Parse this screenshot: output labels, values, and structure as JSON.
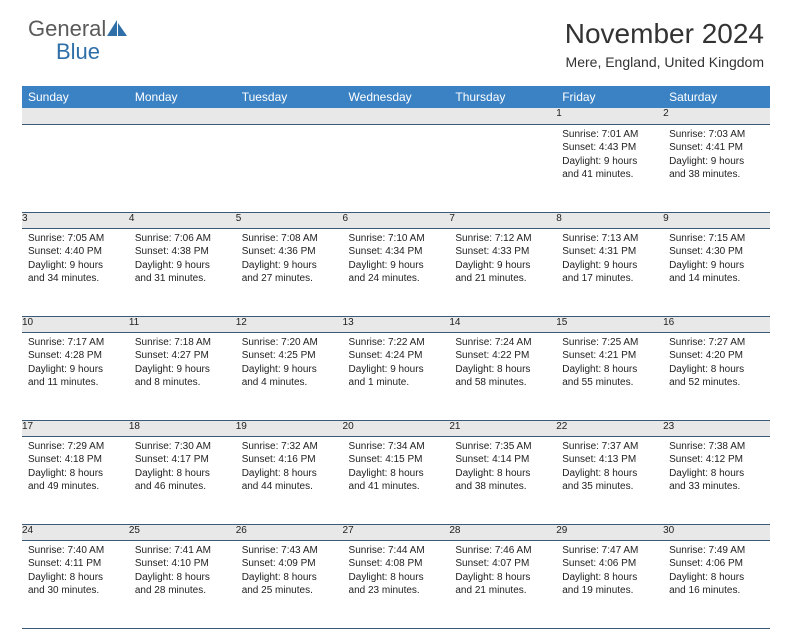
{
  "brand": {
    "word1": "General",
    "word2": "Blue",
    "logo_color": "#2f6fa8",
    "text_color": "#5a5a5a"
  },
  "title": "November 2024",
  "location": "Mere, England, United Kingdom",
  "colors": {
    "header_bg": "#3b82c4",
    "header_fg": "#ffffff",
    "daynum_bg": "#e8e8e8",
    "row_border": "#3b5a7a",
    "text": "#222222"
  },
  "days_of_week": [
    "Sunday",
    "Monday",
    "Tuesday",
    "Wednesday",
    "Thursday",
    "Friday",
    "Saturday"
  ],
  "weeks": [
    [
      null,
      null,
      null,
      null,
      null,
      {
        "n": "1",
        "sunrise": "Sunrise: 7:01 AM",
        "sunset": "Sunset: 4:43 PM",
        "day1": "Daylight: 9 hours",
        "day2": "and 41 minutes."
      },
      {
        "n": "2",
        "sunrise": "Sunrise: 7:03 AM",
        "sunset": "Sunset: 4:41 PM",
        "day1": "Daylight: 9 hours",
        "day2": "and 38 minutes."
      }
    ],
    [
      {
        "n": "3",
        "sunrise": "Sunrise: 7:05 AM",
        "sunset": "Sunset: 4:40 PM",
        "day1": "Daylight: 9 hours",
        "day2": "and 34 minutes."
      },
      {
        "n": "4",
        "sunrise": "Sunrise: 7:06 AM",
        "sunset": "Sunset: 4:38 PM",
        "day1": "Daylight: 9 hours",
        "day2": "and 31 minutes."
      },
      {
        "n": "5",
        "sunrise": "Sunrise: 7:08 AM",
        "sunset": "Sunset: 4:36 PM",
        "day1": "Daylight: 9 hours",
        "day2": "and 27 minutes."
      },
      {
        "n": "6",
        "sunrise": "Sunrise: 7:10 AM",
        "sunset": "Sunset: 4:34 PM",
        "day1": "Daylight: 9 hours",
        "day2": "and 24 minutes."
      },
      {
        "n": "7",
        "sunrise": "Sunrise: 7:12 AM",
        "sunset": "Sunset: 4:33 PM",
        "day1": "Daylight: 9 hours",
        "day2": "and 21 minutes."
      },
      {
        "n": "8",
        "sunrise": "Sunrise: 7:13 AM",
        "sunset": "Sunset: 4:31 PM",
        "day1": "Daylight: 9 hours",
        "day2": "and 17 minutes."
      },
      {
        "n": "9",
        "sunrise": "Sunrise: 7:15 AM",
        "sunset": "Sunset: 4:30 PM",
        "day1": "Daylight: 9 hours",
        "day2": "and 14 minutes."
      }
    ],
    [
      {
        "n": "10",
        "sunrise": "Sunrise: 7:17 AM",
        "sunset": "Sunset: 4:28 PM",
        "day1": "Daylight: 9 hours",
        "day2": "and 11 minutes."
      },
      {
        "n": "11",
        "sunrise": "Sunrise: 7:18 AM",
        "sunset": "Sunset: 4:27 PM",
        "day1": "Daylight: 9 hours",
        "day2": "and 8 minutes."
      },
      {
        "n": "12",
        "sunrise": "Sunrise: 7:20 AM",
        "sunset": "Sunset: 4:25 PM",
        "day1": "Daylight: 9 hours",
        "day2": "and 4 minutes."
      },
      {
        "n": "13",
        "sunrise": "Sunrise: 7:22 AM",
        "sunset": "Sunset: 4:24 PM",
        "day1": "Daylight: 9 hours",
        "day2": "and 1 minute."
      },
      {
        "n": "14",
        "sunrise": "Sunrise: 7:24 AM",
        "sunset": "Sunset: 4:22 PM",
        "day1": "Daylight: 8 hours",
        "day2": "and 58 minutes."
      },
      {
        "n": "15",
        "sunrise": "Sunrise: 7:25 AM",
        "sunset": "Sunset: 4:21 PM",
        "day1": "Daylight: 8 hours",
        "day2": "and 55 minutes."
      },
      {
        "n": "16",
        "sunrise": "Sunrise: 7:27 AM",
        "sunset": "Sunset: 4:20 PM",
        "day1": "Daylight: 8 hours",
        "day2": "and 52 minutes."
      }
    ],
    [
      {
        "n": "17",
        "sunrise": "Sunrise: 7:29 AM",
        "sunset": "Sunset: 4:18 PM",
        "day1": "Daylight: 8 hours",
        "day2": "and 49 minutes."
      },
      {
        "n": "18",
        "sunrise": "Sunrise: 7:30 AM",
        "sunset": "Sunset: 4:17 PM",
        "day1": "Daylight: 8 hours",
        "day2": "and 46 minutes."
      },
      {
        "n": "19",
        "sunrise": "Sunrise: 7:32 AM",
        "sunset": "Sunset: 4:16 PM",
        "day1": "Daylight: 8 hours",
        "day2": "and 44 minutes."
      },
      {
        "n": "20",
        "sunrise": "Sunrise: 7:34 AM",
        "sunset": "Sunset: 4:15 PM",
        "day1": "Daylight: 8 hours",
        "day2": "and 41 minutes."
      },
      {
        "n": "21",
        "sunrise": "Sunrise: 7:35 AM",
        "sunset": "Sunset: 4:14 PM",
        "day1": "Daylight: 8 hours",
        "day2": "and 38 minutes."
      },
      {
        "n": "22",
        "sunrise": "Sunrise: 7:37 AM",
        "sunset": "Sunset: 4:13 PM",
        "day1": "Daylight: 8 hours",
        "day2": "and 35 minutes."
      },
      {
        "n": "23",
        "sunrise": "Sunrise: 7:38 AM",
        "sunset": "Sunset: 4:12 PM",
        "day1": "Daylight: 8 hours",
        "day2": "and 33 minutes."
      }
    ],
    [
      {
        "n": "24",
        "sunrise": "Sunrise: 7:40 AM",
        "sunset": "Sunset: 4:11 PM",
        "day1": "Daylight: 8 hours",
        "day2": "and 30 minutes."
      },
      {
        "n": "25",
        "sunrise": "Sunrise: 7:41 AM",
        "sunset": "Sunset: 4:10 PM",
        "day1": "Daylight: 8 hours",
        "day2": "and 28 minutes."
      },
      {
        "n": "26",
        "sunrise": "Sunrise: 7:43 AM",
        "sunset": "Sunset: 4:09 PM",
        "day1": "Daylight: 8 hours",
        "day2": "and 25 minutes."
      },
      {
        "n": "27",
        "sunrise": "Sunrise: 7:44 AM",
        "sunset": "Sunset: 4:08 PM",
        "day1": "Daylight: 8 hours",
        "day2": "and 23 minutes."
      },
      {
        "n": "28",
        "sunrise": "Sunrise: 7:46 AM",
        "sunset": "Sunset: 4:07 PM",
        "day1": "Daylight: 8 hours",
        "day2": "and 21 minutes."
      },
      {
        "n": "29",
        "sunrise": "Sunrise: 7:47 AM",
        "sunset": "Sunset: 4:06 PM",
        "day1": "Daylight: 8 hours",
        "day2": "and 19 minutes."
      },
      {
        "n": "30",
        "sunrise": "Sunrise: 7:49 AM",
        "sunset": "Sunset: 4:06 PM",
        "day1": "Daylight: 8 hours",
        "day2": "and 16 minutes."
      }
    ]
  ]
}
